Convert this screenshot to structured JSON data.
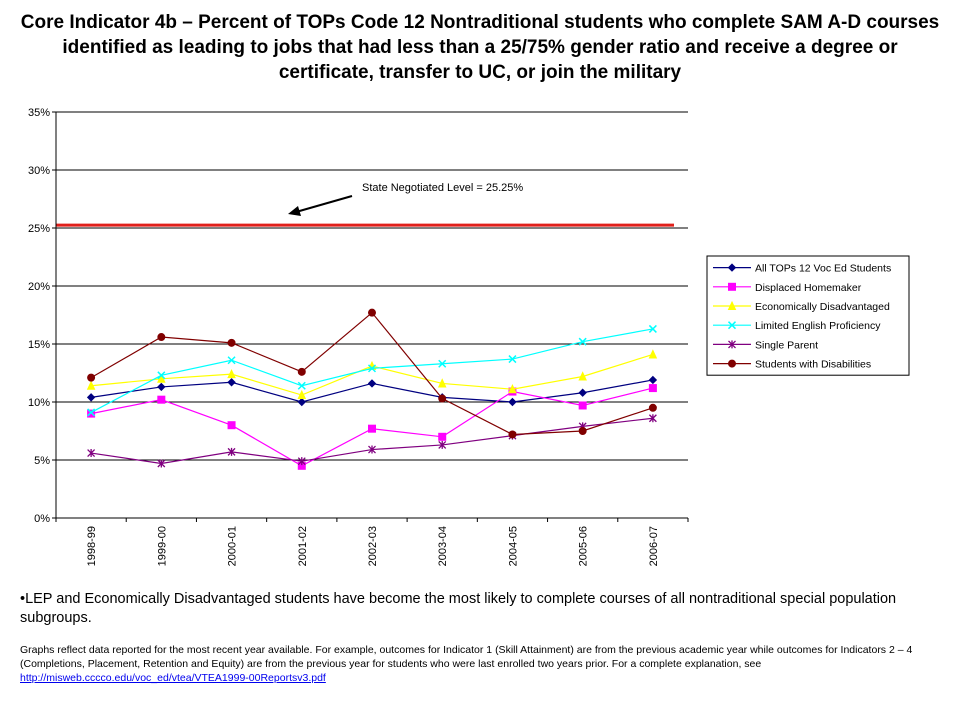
{
  "title": "Core Indicator 4b – Percent of TOPs Code 12 Nontraditional students who complete SAM A-D courses identified as leading to jobs that had less than a 25/75% gender ratio and receive a degree or certificate, transfer to UC, or join the military",
  "chart_data": {
    "type": "line",
    "title": "",
    "xlabel": "",
    "ylabel": "",
    "categories": [
      "1998-99",
      "1999-00",
      "2000-01",
      "2001-02",
      "2002-03",
      "2003-04",
      "2004-05",
      "2005-06",
      "2006-07"
    ],
    "y_ticks": [
      "0%",
      "5%",
      "10%",
      "15%",
      "20%",
      "25%",
      "30%",
      "35%"
    ],
    "ylim": [
      0,
      35
    ],
    "grid": "horizontal",
    "legend_position": "right",
    "reference_line": {
      "value": 25.25,
      "label": "State Negotiated Level = 25.25%",
      "color": "#e0201b"
    },
    "series": [
      {
        "name": "All TOPs 12 Voc Ed Students",
        "color": "#000080",
        "marker": "diamond",
        "values": [
          10.4,
          11.3,
          11.7,
          10.0,
          11.6,
          10.4,
          10.0,
          10.8,
          11.9
        ]
      },
      {
        "name": "Displaced Homemaker",
        "color": "#ff00ff",
        "marker": "square",
        "values": [
          9.0,
          10.2,
          8.0,
          4.5,
          7.7,
          7.0,
          10.9,
          9.7,
          11.2
        ]
      },
      {
        "name": "Economically Disadvantaged",
        "color": "#ffff00",
        "marker": "triangle",
        "values": [
          11.4,
          12.0,
          12.4,
          10.6,
          13.1,
          11.6,
          11.1,
          12.2,
          14.1
        ]
      },
      {
        "name": "Limited English Proficiency",
        "color": "#00ffff",
        "marker": "x",
        "values": [
          9.1,
          12.3,
          13.6,
          11.4,
          12.9,
          13.3,
          13.7,
          15.2,
          16.3
        ]
      },
      {
        "name": "Single Parent",
        "color": "#800080",
        "marker": "star",
        "values": [
          5.6,
          4.7,
          5.7,
          4.9,
          5.9,
          6.3,
          7.1,
          7.9,
          8.6
        ]
      },
      {
        "name": "Students with Disabilities",
        "color": "#800000",
        "marker": "circle",
        "values": [
          12.1,
          15.6,
          15.1,
          12.6,
          17.7,
          10.3,
          7.2,
          7.5,
          9.5
        ]
      }
    ]
  },
  "bullet": "•LEP and Economically Disadvantaged students have become the most likely to complete courses of all nontraditional special population subgroups.",
  "note": {
    "text": "Graphs reflect data reported for the most recent year available. For example, outcomes for Indicator 1 (Skill Attainment) are from the previous academic year while outcomes for Indicators 2 – 4 (Completions, Placement, Retention and Equity) are from the previous year for students who were last enrolled two years prior.  For a complete explanation, see ",
    "link": "http://misweb.cccco.edu/voc_ed/vtea/VTEA1999-00Reportsv3.pdf"
  }
}
